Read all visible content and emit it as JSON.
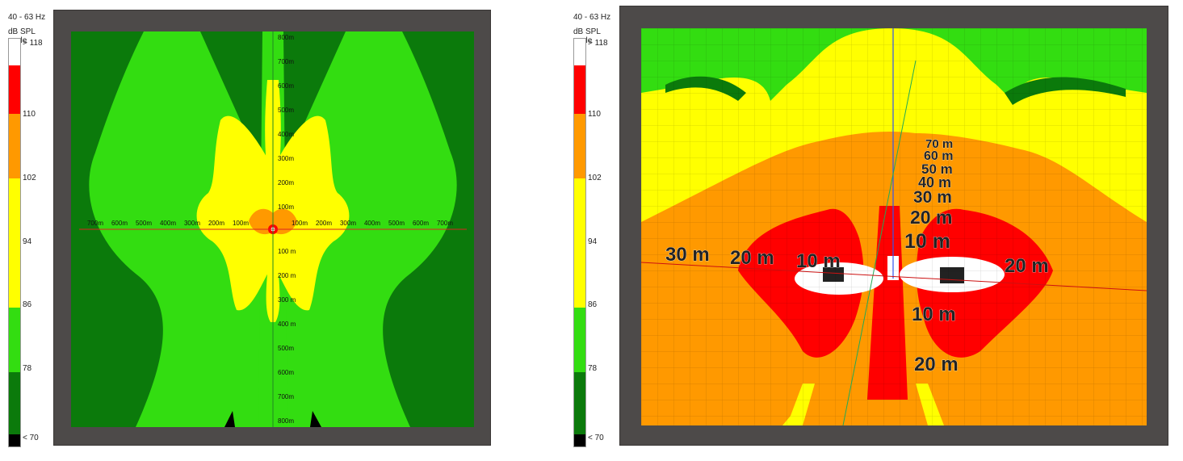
{
  "colors": {
    "white": "#ffffff",
    "red": "#ff0000",
    "orange": "#ff9900",
    "yellow": "#ffff00",
    "green": "#33dd11",
    "darkgreen": "#0b7a0b",
    "black": "#000000",
    "frame": "#4d4a49"
  },
  "scale": {
    "frequency": "40 - 63 Hz",
    "title": "dB SPL scale",
    "labels": [
      "> 118",
      "110",
      "102",
      "94",
      "86",
      "78",
      "< 70"
    ]
  },
  "chart_data": [
    {
      "type": "heatmap",
      "view": "plan",
      "x_ticks_left": [
        "700m",
        "600m",
        "500m",
        "400m",
        "300m",
        "200m",
        "100m"
      ],
      "x_ticks_right": [
        "100m",
        "200m",
        "300m",
        "400m",
        "500m",
        "600m",
        "700m"
      ],
      "y_ticks_top": [
        "800m",
        "700m",
        "600m",
        "500m",
        "400m",
        "300m",
        "200m",
        "100m"
      ],
      "y_ticks_bottom": [
        "100 m",
        "200 m",
        "300 m",
        "400 m",
        "500m",
        "600m",
        "700m",
        "800m"
      ]
    },
    {
      "type": "heatmap",
      "view": "perspective",
      "depth_labels": [
        "70 m",
        "60 m",
        "50 m",
        "40 m",
        "30 m",
        "20 m",
        "10 m"
      ],
      "side_labels": [
        "30 m",
        "20 m",
        "10 m",
        "20 m"
      ],
      "front_labels": [
        "10 m",
        "20 m"
      ]
    }
  ]
}
